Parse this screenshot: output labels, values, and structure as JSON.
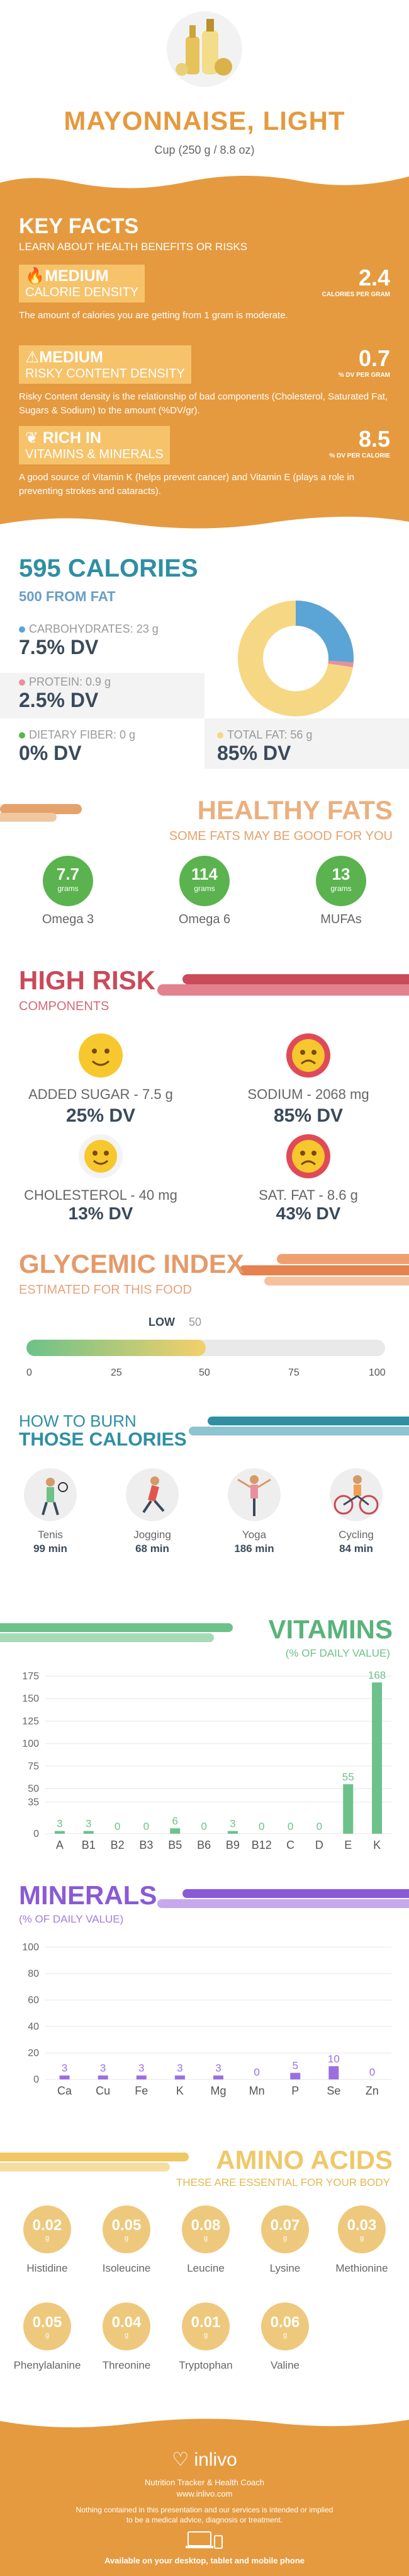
{
  "header": {
    "title": "MAYONNAISE, LIGHT",
    "serving": "Cup (250 g / 8.8 oz)"
  },
  "key_facts": {
    "title": "KEY FACTS",
    "subtitle": "LEARN ABOUT HEALTH BENEFITS OR RISKS",
    "items": [
      {
        "level": "MEDIUM",
        "name": "CALORIE DENSITY",
        "value": "2.4",
        "unit": "CALORIES PER GRAM",
        "desc": "The amount of calories you are getting from 1 gram is moderate."
      },
      {
        "level": "MEDIUM",
        "name": "RISKY CONTENT DENSITY",
        "value": "0.7",
        "unit": "% DV PER GRAM",
        "desc": "Risky Content density is the relationship of bad components (Cholesterol, Saturated Fat, Sugars & Sodium) to the amount (%DV/gr)."
      },
      {
        "level": "RICH IN",
        "name": "VITAMINS & MINERALS",
        "value": "8.5",
        "unit": "% DV PER CALORIE",
        "desc": "A good source of Vitamin K (helps prevent cancer) and Vitamin E (plays a role in preventing strokes and cataracts)."
      }
    ]
  },
  "calories": {
    "title": "595 CALORIES",
    "from_fat": "500 FROM FAT",
    "carbs": {
      "label": "CARBOHYDRATES: 23 g",
      "dv": "7.5% DV"
    },
    "protein": {
      "label": "PROTEIN: 0.9 g",
      "dv": "2.5% DV"
    },
    "fiber": {
      "label": "DIETARY FIBER: 0 g",
      "dv": "0% DV"
    },
    "fat": {
      "label": "TOTAL FAT: 56 g",
      "dv": "85% DV"
    },
    "colors": {
      "carbs": "#5ba4d6",
      "protein": "#e88fa0",
      "fiber": "#5ab34e",
      "fat": "#f6d784"
    }
  },
  "healthy_fats": {
    "title": "HEALTHY FATS",
    "subtitle": "SOME FATS MAY BE GOOD FOR YOU",
    "unit": "grams",
    "items": [
      {
        "value": "7.7",
        "label": "Omega 3"
      },
      {
        "value": "114",
        "label": "Omega 6"
      },
      {
        "value": "13",
        "label": "MUFAs"
      }
    ]
  },
  "high_risk": {
    "title": "HIGH RISK",
    "subtitle": "COMPONENTS",
    "items": [
      {
        "label": "ADDED SUGAR - 7.5 g",
        "dv": "25% DV",
        "mood": "happy"
      },
      {
        "label": "SODIUM - 2068 mg",
        "dv": "85% DV",
        "mood": "sad"
      },
      {
        "label": "CHOLESTEROL - 40 mg",
        "dv": "13% DV",
        "mood": "happy"
      },
      {
        "label": "SAT. FAT - 8.6 g",
        "dv": "43% DV",
        "mood": "sad"
      }
    ]
  },
  "glycemic": {
    "title": "GLYCEMIC INDEX",
    "subtitle": "ESTIMATED FOR THIS FOOD",
    "level": "LOW",
    "value": "50",
    "ticks": [
      "0",
      "25",
      "50",
      "75",
      "100"
    ]
  },
  "burn": {
    "title1": "HOW TO BURN",
    "title2": "THOSE CALORIES",
    "items": [
      {
        "name": "Tenis",
        "minutes": "99 min"
      },
      {
        "name": "Jogging",
        "minutes": "68 min"
      },
      {
        "name": "Yoga",
        "minutes": "186 min"
      },
      {
        "name": "Cycling",
        "minutes": "84 min"
      }
    ]
  },
  "chart_data": [
    {
      "type": "bar",
      "title": "VITAMINS",
      "subtitle": "(% OF DAILY VALUE)",
      "categories": [
        "A",
        "B1",
        "B2",
        "B3",
        "B5",
        "B6",
        "B9",
        "B12",
        "C",
        "D",
        "E",
        "K"
      ],
      "values": [
        3,
        3,
        0,
        0,
        6,
        0,
        3,
        0,
        0,
        0,
        55,
        168
      ],
      "labels": [
        "3",
        "3",
        "0",
        "0",
        "6",
        "0",
        "3",
        "0",
        "0",
        "0",
        "55",
        "168"
      ],
      "yticks": [
        "0",
        "35",
        "50",
        "75",
        "100",
        "125",
        "150",
        "175"
      ],
      "ylim": [
        0,
        175
      ],
      "color": "#6cc28a"
    },
    {
      "type": "bar",
      "title": "MINERALS",
      "subtitle": "(% OF DAILY VALUE)",
      "categories": [
        "Ca",
        "Cu",
        "Fe",
        "K",
        "Mg",
        "Mn",
        "P",
        "Se",
        "Zn"
      ],
      "values": [
        3,
        3,
        3,
        3,
        3,
        0,
        5,
        10,
        0
      ],
      "labels": [
        "3",
        "3",
        "3",
        "3",
        "3",
        "0",
        "5",
        "10",
        "0"
      ],
      "yticks": [
        "0",
        "20",
        "40",
        "60",
        "80",
        "100"
      ],
      "ylim": [
        0,
        100
      ],
      "color": "#9b6fe0"
    }
  ],
  "amino": {
    "title": "AMINO ACIDS",
    "subtitle": "THESE ARE ESSENTIAL FOR YOUR BODY",
    "unit": "g",
    "items": [
      {
        "value": "0.02",
        "name": "Histidine"
      },
      {
        "value": "0.05",
        "name": "Isoleucine"
      },
      {
        "value": "0.08",
        "name": "Leucine"
      },
      {
        "value": "0.07",
        "name": "Lysine"
      },
      {
        "value": "0.03",
        "name": "Methionine"
      },
      {
        "value": "0.05",
        "name": "Phenylalanine"
      },
      {
        "value": "0.04",
        "name": "Threonine"
      },
      {
        "value": "0.01",
        "name": "Tryptophan"
      },
      {
        "value": "0.06",
        "name": "Valine"
      }
    ]
  },
  "footer": {
    "brand": "inlivo",
    "tagline": "Nutrition Tracker & Health Coach",
    "url": "www.inlivo.com",
    "disclaimer1": "Nothing contained in this presentation and our services is intended or implied",
    "disclaimer2": "to be a medical advice, diagnosis or treatment.",
    "available": "Available on your desktop, tablet and mobile phone"
  }
}
